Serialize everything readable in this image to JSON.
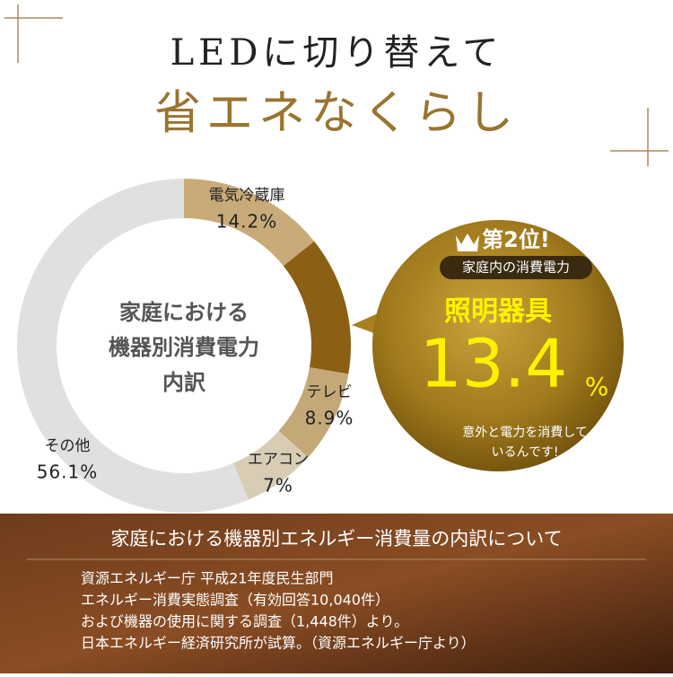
{
  "chart_data": {
    "type": "pie",
    "title": "LEDに切り替えて",
    "subtitle": "省エネなくらし",
    "center_label": [
      "家庭における",
      "機器別消費電力",
      "内訳"
    ],
    "categories": [
      "電気冷蔵庫",
      null,
      "テレビ",
      "エアコン",
      "その他"
    ],
    "values": [
      14.2,
      13.4,
      8.9,
      7,
      56.1
    ],
    "value_labels": [
      "14.2%",
      null,
      "8.9%",
      "7%",
      "56.1%"
    ],
    "colors": [
      "#c8ab78",
      "#8b6014",
      "#c4a877",
      "#d8ccb5",
      "#e0e0e0"
    ],
    "callout": {
      "badge": "第2位!",
      "caption": "家庭内の消費電力",
      "name": "照明器具",
      "unit": "%",
      "note": [
        "意外と電力を消費して",
        "いるんです!"
      ]
    }
  },
  "footer": {
    "heading": "家庭における機器別エネルギー消費量の内訳について",
    "lines": [
      "資源エネルギー庁 平成21年度民生部門",
      "エネルギー消費実態調査（有効回答10,040件）",
      "および機器の使用に関する調査（1,448件）より。",
      "日本エネルギー経済研究所が試算。（資源エネルギー庁より）"
    ]
  }
}
